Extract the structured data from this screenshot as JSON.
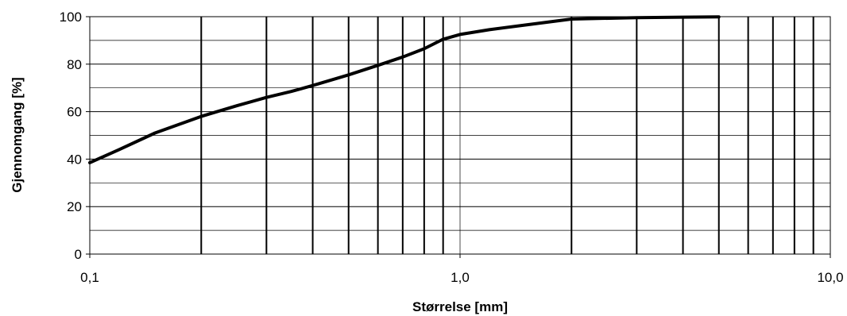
{
  "chart_data": {
    "type": "line",
    "title": "",
    "xlabel": "Størrelse [mm]",
    "ylabel": "Gjennomgang [%]",
    "x_scale": "log",
    "xlim": [
      0.1,
      10.0
    ],
    "ylim": [
      0,
      100
    ],
    "x_ticks": [
      0.1,
      1.0,
      10.0
    ],
    "x_tick_labels": [
      "0,1",
      "1,0",
      "10,0"
    ],
    "y_ticks": [
      0,
      20,
      40,
      60,
      80,
      100
    ],
    "y_tick_labels": [
      "0",
      "20",
      "40",
      "60",
      "80",
      "100"
    ],
    "minor_x_gridlines": [
      0.2,
      0.3,
      0.4,
      0.5,
      0.6,
      0.7,
      0.8,
      0.9,
      2,
      3,
      4,
      5,
      6,
      7,
      8,
      9
    ],
    "minor_y_gridlines": [
      10,
      30,
      50,
      70,
      90
    ],
    "grid": true,
    "legend": "none",
    "series": [
      {
        "x": [
          0.1,
          0.12,
          0.15,
          0.2,
          0.25,
          0.3,
          0.35,
          0.4,
          0.5,
          0.6,
          0.7,
          0.8,
          0.9,
          1.0,
          1.2,
          1.5,
          2.0,
          3.0,
          4.0,
          5.0
        ],
        "y": [
          38.5,
          44,
          51,
          58,
          62.5,
          66,
          68.5,
          71,
          75.5,
          79.5,
          83,
          86.5,
          90.5,
          92.5,
          94.5,
          96.5,
          99,
          99.6,
          99.8,
          99.9
        ]
      }
    ]
  }
}
